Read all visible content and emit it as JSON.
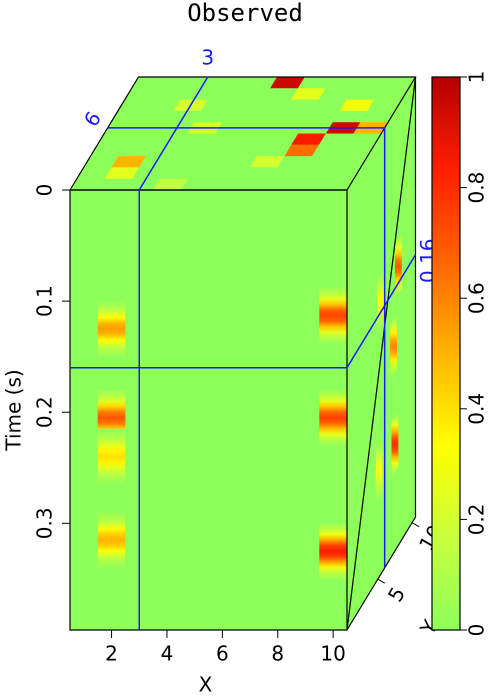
{
  "chart_data": {
    "type": "cube",
    "title": "Observed",
    "xlabel": "X",
    "ylabel": "Time (s)",
    "zlabel": "Y",
    "xlim": [
      0.5,
      10.5
    ],
    "ylim": [
      0,
      0.396
    ],
    "zlim": [
      0.5,
      10.5
    ],
    "xticks": [
      2,
      4,
      6,
      8,
      10
    ],
    "yticks": [
      0,
      0.1,
      0.2,
      0.3
    ],
    "zticks": [
      5,
      10
    ],
    "slices": {
      "x": 3,
      "z": 6,
      "y": 0.16
    },
    "slice_color": "#1a1aff",
    "clim": [
      0,
      1
    ],
    "cticks": [
      0,
      0.2,
      0.4,
      0.6,
      0.8,
      1
    ],
    "colormap": [
      "#8cff5a",
      "#c8ff3c",
      "#ffff00",
      "#ffb400",
      "#ff6400",
      "#ff1e00",
      "#b40000"
    ],
    "front_events": [
      {
        "x": 2,
        "y": 0.125,
        "value": 0.55
      },
      {
        "x": 2,
        "y": 0.205,
        "value": 0.7
      },
      {
        "x": 2,
        "y": 0.24,
        "value": 0.4
      },
      {
        "x": 2,
        "y": 0.315,
        "value": 0.5
      },
      {
        "x": 10,
        "y": 0.113,
        "value": 0.75
      },
      {
        "x": 10,
        "y": 0.205,
        "value": 0.75
      },
      {
        "x": 10,
        "y": 0.325,
        "value": 0.85
      }
    ],
    "top_cells": [
      {
        "x": 6,
        "z": 10,
        "value": 0.95
      },
      {
        "x": 2,
        "z": 3,
        "value": 0.5
      },
      {
        "x": 2,
        "z": 2,
        "value": 0.25
      },
      {
        "x": 8,
        "z": 4,
        "value": 0.65
      },
      {
        "x": 8,
        "z": 5,
        "value": 0.85
      },
      {
        "x": 9,
        "z": 6,
        "value": 0.95
      },
      {
        "x": 10,
        "z": 6,
        "value": 0.5
      },
      {
        "x": 9,
        "z": 8,
        "value": 0.3
      },
      {
        "x": 7,
        "z": 9,
        "value": 0.25
      },
      {
        "x": 3,
        "z": 8,
        "value": 0.2
      },
      {
        "x": 4,
        "z": 6,
        "value": 0.2
      },
      {
        "x": 7,
        "z": 3,
        "value": 0.2
      },
      {
        "x": 4,
        "z": 1,
        "value": 0.15
      }
    ],
    "side_events": [
      {
        "z": 8,
        "y": 0.145,
        "value": 0.7
      },
      {
        "z": 7.3,
        "y": 0.21,
        "value": 0.6
      },
      {
        "z": 7.5,
        "y": 0.3,
        "value": 0.8
      },
      {
        "z": 5.4,
        "y": 0.15,
        "value": 0.3
      },
      {
        "z": 5.2,
        "y": 0.3,
        "value": 0.3
      }
    ]
  }
}
